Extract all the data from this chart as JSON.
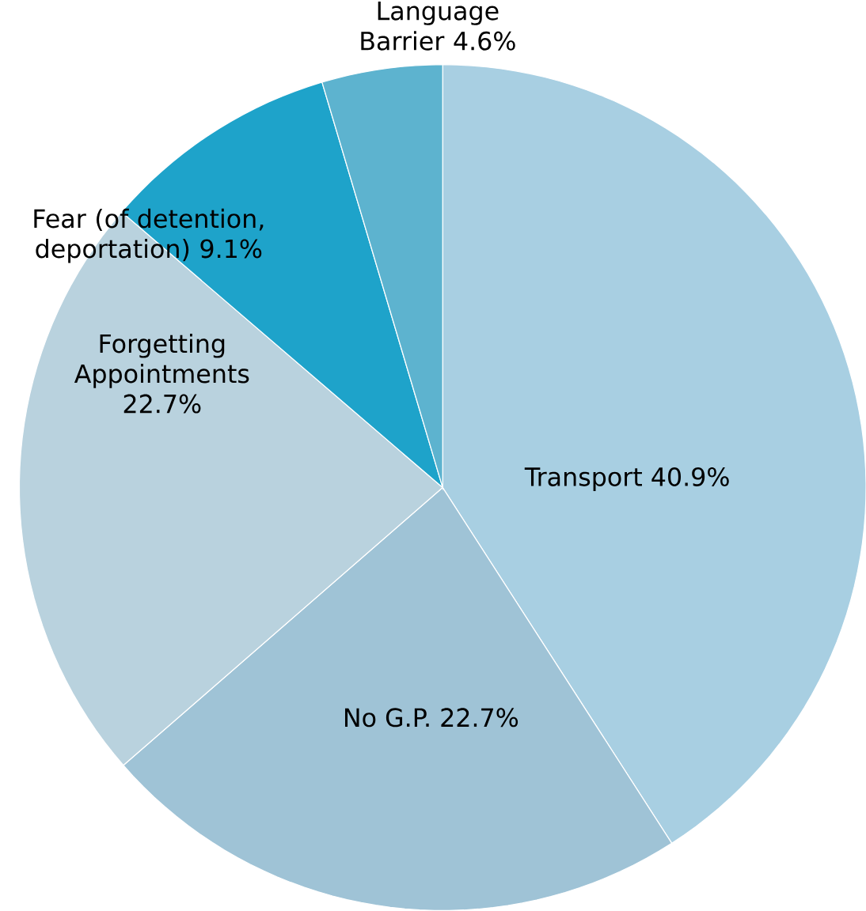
{
  "chart_data": {
    "type": "pie",
    "categories": [
      "Transport",
      "No G.P.",
      "Forgetting Appointments",
      "Fear (of detention, deportation)",
      "Language Barrier"
    ],
    "values": [
      40.9,
      22.7,
      22.7,
      9.1,
      4.6
    ],
    "value_labels": [
      "40.9%",
      "22.7%",
      "22.7%",
      "9.1%",
      "4.6%"
    ],
    "colors": [
      "#a8cfe2",
      "#9fc3d6",
      "#b9d2de",
      "#1ea3ca",
      "#5db3cf"
    ]
  }
}
